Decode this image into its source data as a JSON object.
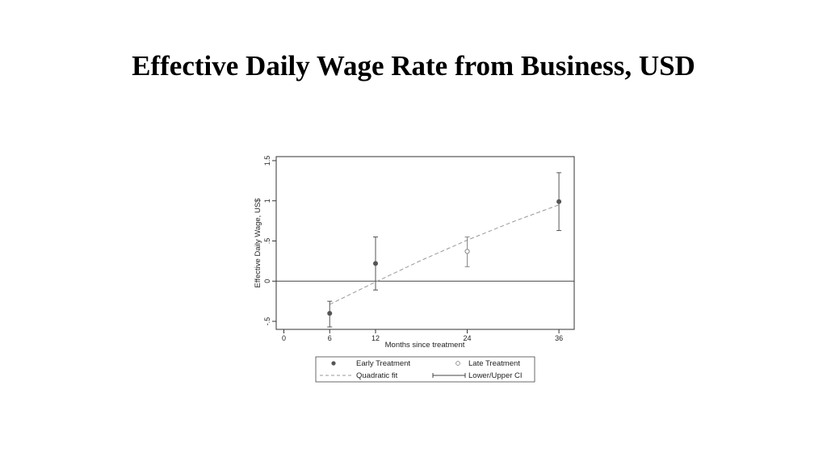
{
  "slide": {
    "title": "Effective Daily Wage Rate from Business, USD"
  },
  "chart_data": {
    "type": "scatter",
    "xlabel": "Months since treatment",
    "ylabel": "Effective Daily Wage, US$",
    "xlim": [
      -1,
      38
    ],
    "ylim": [
      -0.6,
      1.55
    ],
    "x_ticks": [
      0,
      6,
      12,
      24,
      36
    ],
    "y_ticks": [
      -0.5,
      0,
      0.5,
      1,
      1.5
    ],
    "y_tick_labels": [
      "-.5",
      "0",
      ".5",
      "1",
      "1.5"
    ],
    "reference_line_y": 0,
    "grid": false,
    "legend_position": "bottom",
    "series": [
      {
        "name": "Early Treatment",
        "marker": "filled-circle",
        "color": "#555555",
        "points": [
          {
            "x": 6,
            "y": -0.4,
            "lower": -0.57,
            "upper": -0.25
          },
          {
            "x": 12,
            "y": 0.22,
            "lower": -0.11,
            "upper": 0.55
          },
          {
            "x": 36,
            "y": 0.99,
            "lower": 0.63,
            "upper": 1.35
          }
        ]
      },
      {
        "name": "Late Treatment",
        "marker": "hollow-circle",
        "color": "#888888",
        "points": [
          {
            "x": 24,
            "y": 0.37,
            "lower": 0.18,
            "upper": 0.55
          }
        ]
      }
    ],
    "fit": {
      "name": "Quadratic fit",
      "style": "dashed",
      "color": "#999999",
      "points": [
        {
          "x": 6,
          "y": -0.29
        },
        {
          "x": 12,
          "y": -0.01
        },
        {
          "x": 18,
          "y": 0.26
        },
        {
          "x": 24,
          "y": 0.51
        },
        {
          "x": 30,
          "y": 0.74
        },
        {
          "x": 36,
          "y": 0.95
        }
      ]
    },
    "ci_legend": {
      "name": "Lower/Upper CI"
    }
  }
}
